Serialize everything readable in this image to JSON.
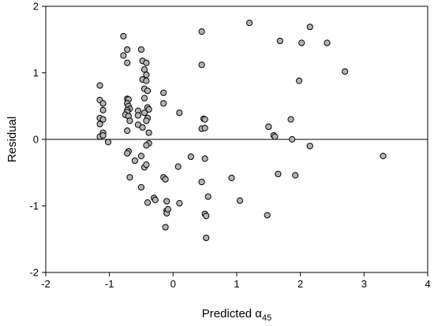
{
  "chart_data": {
    "type": "scatter",
    "title": "",
    "xlabel": "Predicted α",
    "xlabel_subscript": "45",
    "ylabel": "Residual",
    "xlim": [
      -2,
      4
    ],
    "ylim": [
      -2,
      2
    ],
    "xticks": [
      "-2",
      "-1",
      "0",
      "1",
      "2",
      "3",
      "4"
    ],
    "yticks": [
      "-2",
      "-1",
      "0",
      "1",
      "2"
    ],
    "reference_line_y": 0,
    "grid": false,
    "marker_color": "#b4b4b4",
    "points": [
      [
        -1.15,
        0.81
      ],
      [
        -1.15,
        0.59
      ],
      [
        -1.1,
        0.54
      ],
      [
        -1.1,
        0.44
      ],
      [
        -1.15,
        0.32
      ],
      [
        -1.1,
        0.3
      ],
      [
        -1.15,
        0.23
      ],
      [
        -1.1,
        0.1
      ],
      [
        -1.15,
        0.04
      ],
      [
        -1.1,
        0.06
      ],
      [
        -1.02,
        -0.04
      ],
      [
        -0.78,
        1.55
      ],
      [
        -0.78,
        1.26
      ],
      [
        -0.72,
        1.35
      ],
      [
        -0.72,
        1.15
      ],
      [
        -0.72,
        0.61
      ],
      [
        -0.7,
        0.6
      ],
      [
        -0.72,
        0.54
      ],
      [
        -0.7,
        0.5
      ],
      [
        -0.68,
        0.46
      ],
      [
        -0.72,
        0.44
      ],
      [
        -0.72,
        0.41
      ],
      [
        -0.75,
        0.37
      ],
      [
        -0.7,
        0.35
      ],
      [
        -0.68,
        0.28
      ],
      [
        -0.72,
        0.13
      ],
      [
        -0.55,
        0.43
      ],
      [
        -0.55,
        0.36
      ],
      [
        -0.55,
        0.22
      ],
      [
        -0.7,
        -0.18
      ],
      [
        -0.72,
        -0.21
      ],
      [
        -0.68,
        -0.57
      ],
      [
        -0.5,
        1.35
      ],
      [
        -0.48,
        1.18
      ],
      [
        -0.42,
        1.15
      ],
      [
        -0.45,
        1.05
      ],
      [
        -0.42,
        0.97
      ],
      [
        -0.48,
        0.9
      ],
      [
        -0.42,
        0.88
      ],
      [
        -0.45,
        0.76
      ],
      [
        -0.4,
        0.73
      ],
      [
        -0.45,
        0.62
      ],
      [
        -0.4,
        0.48
      ],
      [
        -0.38,
        0.45
      ],
      [
        -0.45,
        0.4
      ],
      [
        -0.4,
        0.32
      ],
      [
        -0.42,
        0.28
      ],
      [
        -0.48,
        0.18
      ],
      [
        -0.38,
        0.1
      ],
      [
        -0.38,
        -0.06
      ],
      [
        -0.42,
        -0.09
      ],
      [
        -0.5,
        -0.25
      ],
      [
        -0.45,
        -0.42
      ],
      [
        -0.42,
        -0.38
      ],
      [
        -0.5,
        -0.72
      ],
      [
        -0.4,
        -0.95
      ],
      [
        -0.6,
        -0.32
      ],
      [
        -0.3,
        -0.88
      ],
      [
        -0.28,
        -0.91
      ],
      [
        -0.15,
        0.7
      ],
      [
        -0.15,
        0.54
      ],
      [
        -0.15,
        -0.57
      ],
      [
        -0.12,
        -0.6
      ],
      [
        -0.1,
        -0.93
      ],
      [
        -0.1,
        -1.07
      ],
      [
        -0.1,
        -1.11
      ],
      [
        -0.08,
        -1.05
      ],
      [
        -0.12,
        -1.32
      ],
      [
        0.1,
        0.4
      ],
      [
        0.08,
        -0.41
      ],
      [
        0.1,
        -0.96
      ],
      [
        0.28,
        -0.26
      ],
      [
        0.45,
        1.62
      ],
      [
        0.45,
        1.12
      ],
      [
        0.48,
        0.31
      ],
      [
        0.5,
        0.3
      ],
      [
        0.45,
        0.16
      ],
      [
        0.5,
        0.17
      ],
      [
        0.5,
        -0.29
      ],
      [
        0.45,
        -0.64
      ],
      [
        0.55,
        -0.86
      ],
      [
        0.5,
        -1.12
      ],
      [
        0.52,
        -1.15
      ],
      [
        0.52,
        -1.48
      ],
      [
        0.92,
        -0.58
      ],
      [
        1.05,
        -0.92
      ],
      [
        1.2,
        1.75
      ],
      [
        1.68,
        1.48
      ],
      [
        1.5,
        0.19
      ],
      [
        1.58,
        0.06
      ],
      [
        1.6,
        0.04
      ],
      [
        1.65,
        -0.52
      ],
      [
        1.48,
        -1.14
      ],
      [
        1.85,
        0.3
      ],
      [
        1.87,
        0.0
      ],
      [
        1.92,
        -0.54
      ],
      [
        1.98,
        0.88
      ],
      [
        2.02,
        1.45
      ],
      [
        2.15,
        1.69
      ],
      [
        2.15,
        -0.1
      ],
      [
        2.42,
        1.45
      ],
      [
        2.7,
        1.02
      ],
      [
        3.3,
        -0.25
      ]
    ]
  }
}
